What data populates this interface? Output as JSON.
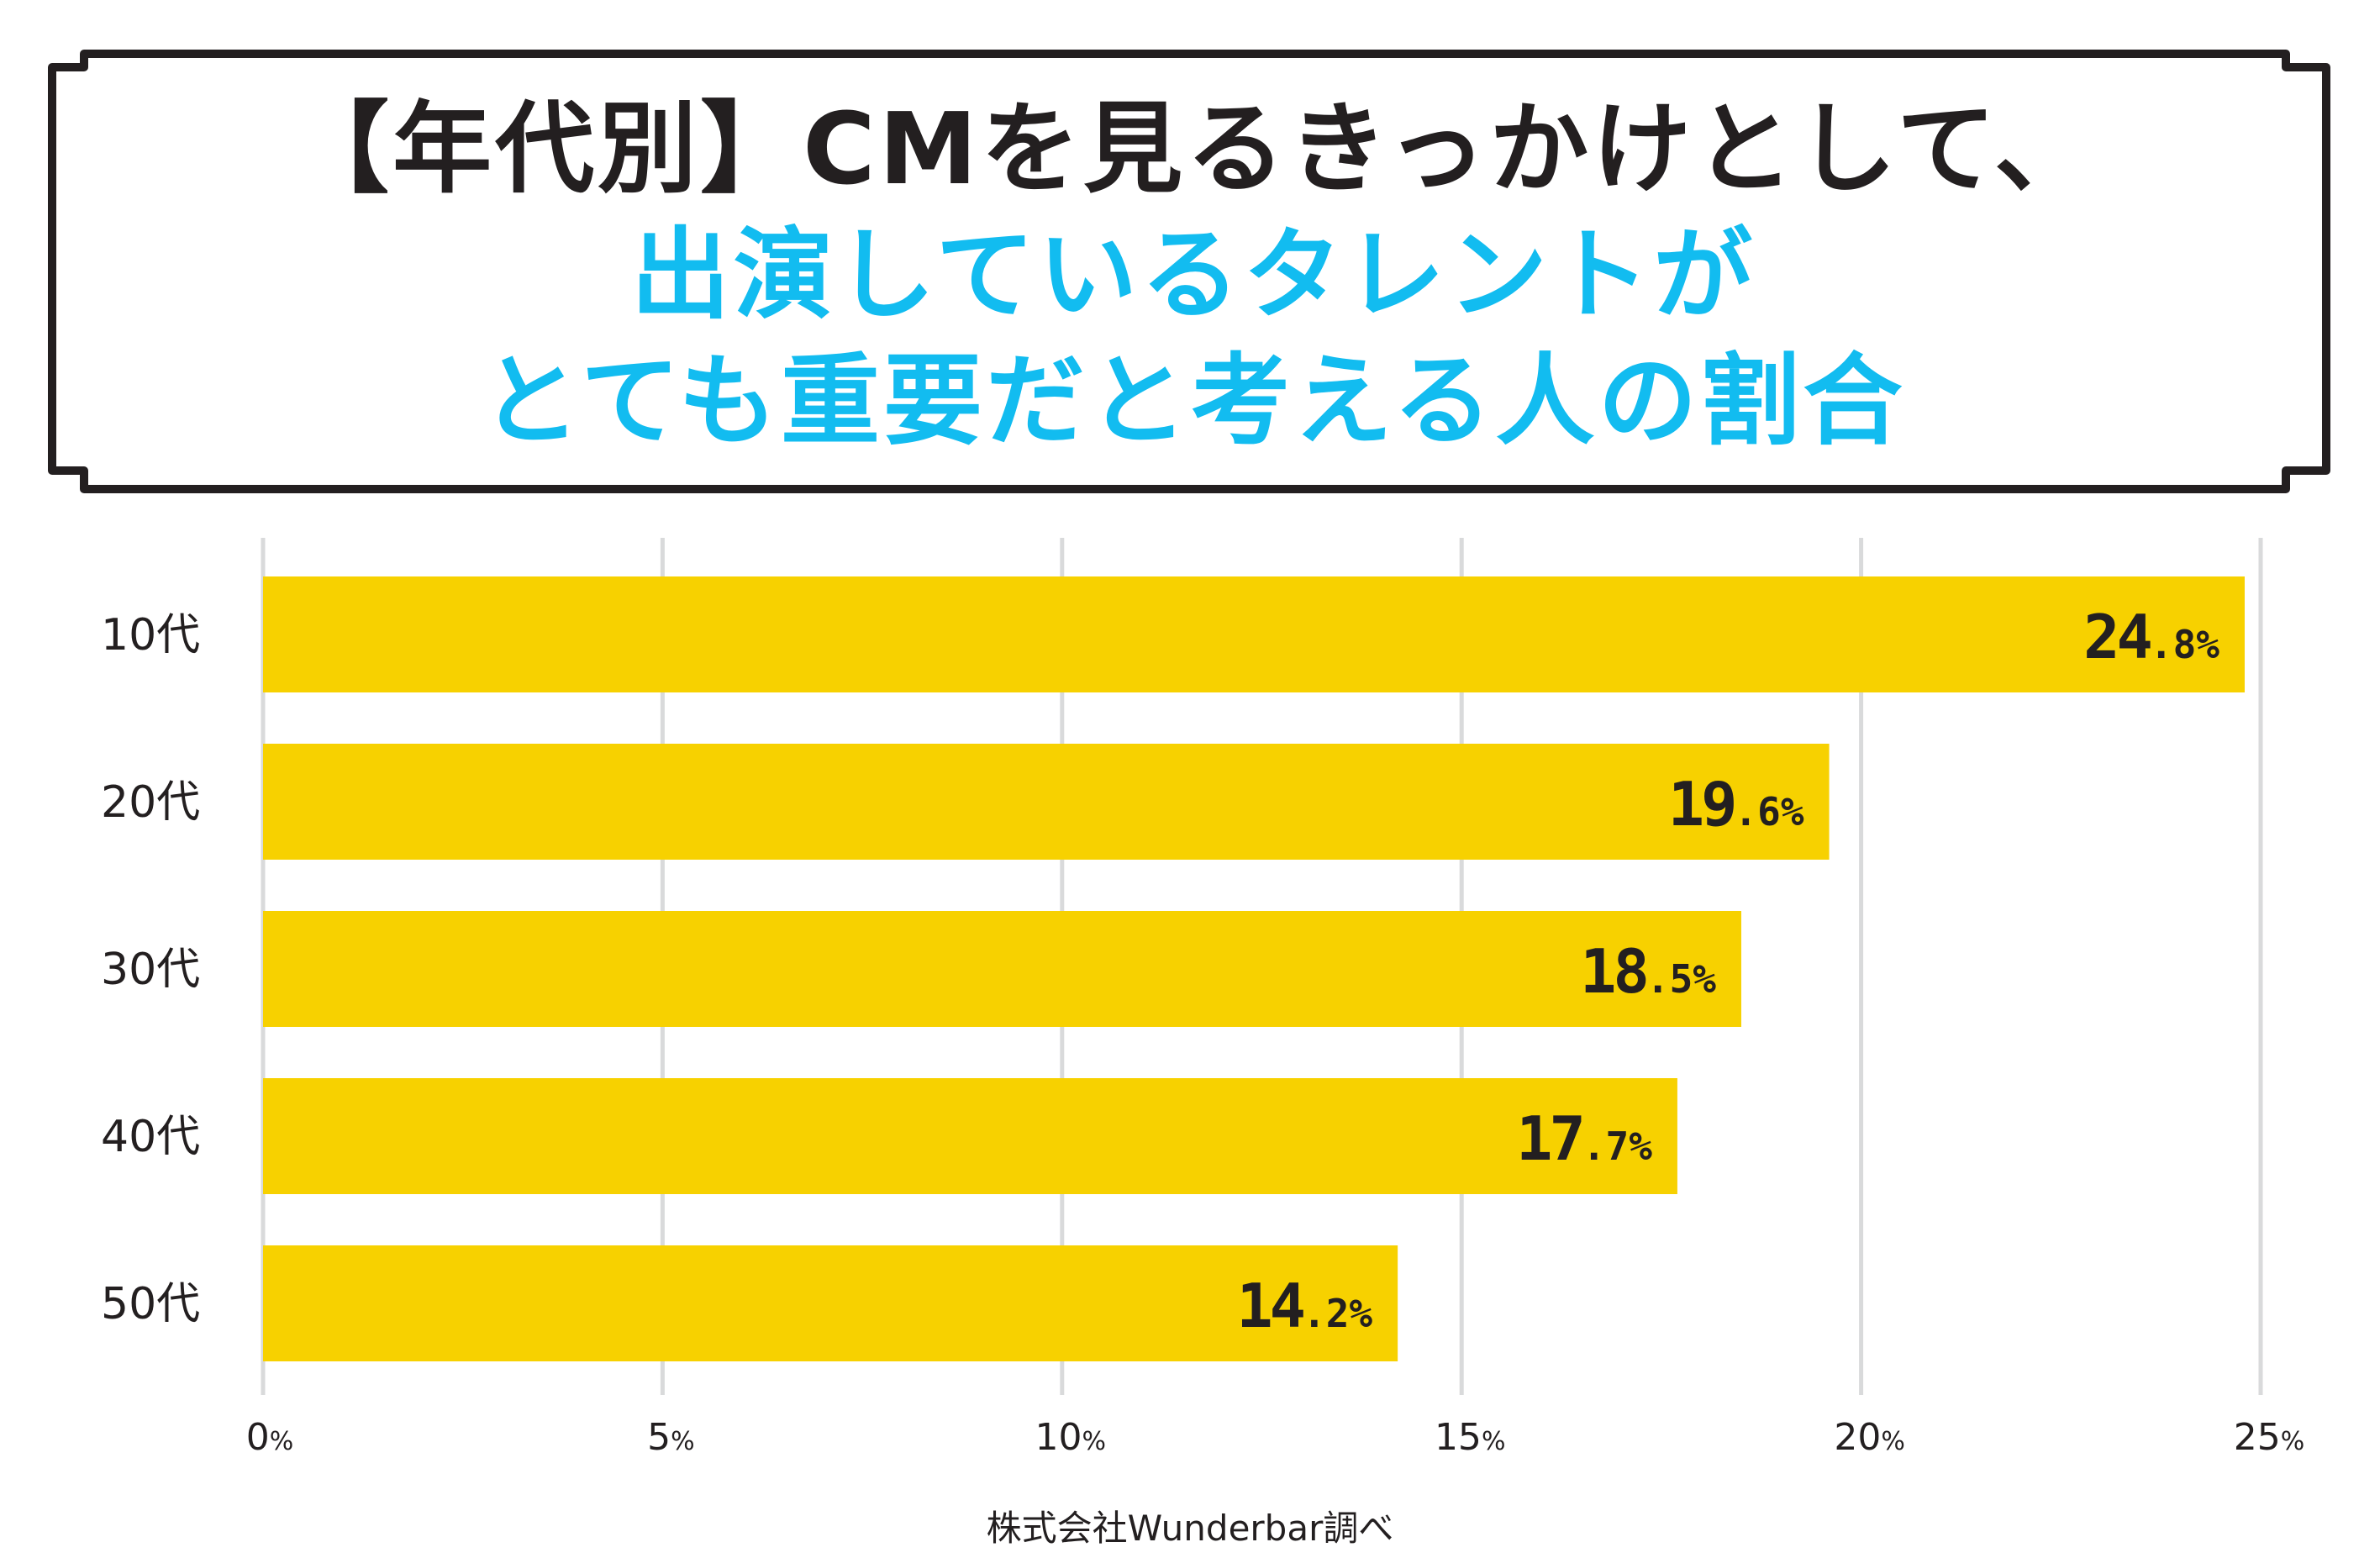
{
  "title": {
    "line1": "【年代別】CMを見るきっかけとして、",
    "line2": "出演しているタレントが",
    "line3": "とても重要だと考える人の割合"
  },
  "colors": {
    "bar": "#f7d100",
    "accent": "#12bcf0",
    "text": "#231f20",
    "grid": "#d9dadb",
    "frame": "#231f20"
  },
  "chart_data": {
    "type": "bar",
    "orientation": "horizontal",
    "categories": [
      "10代",
      "20代",
      "30代",
      "40代",
      "50代"
    ],
    "values": [
      24.8,
      19.6,
      18.5,
      17.7,
      14.2
    ],
    "value_suffix": "%",
    "xlim": [
      0,
      25
    ],
    "ticks": [
      0,
      5,
      10,
      15,
      20,
      25
    ],
    "tick_suffix": "%",
    "grid": true
  },
  "source": "株式会社Wunderbar調べ"
}
